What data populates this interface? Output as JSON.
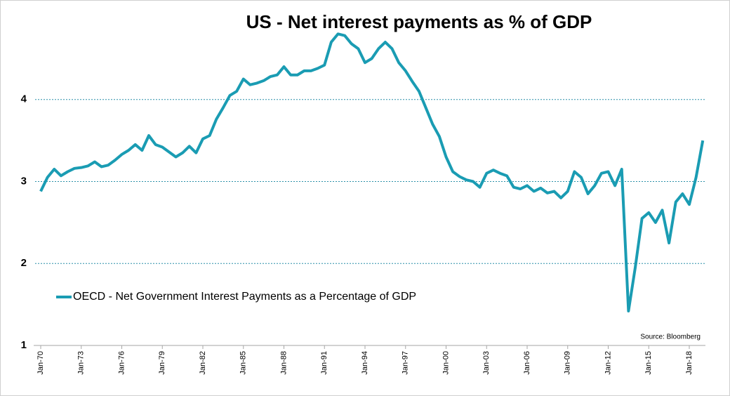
{
  "chart_data": {
    "type": "line",
    "title": "US - Net interest payments as % of GDP",
    "source": "Source: Bloomberg",
    "categories": [
      "Jan-70",
      null,
      null,
      null,
      null,
      null,
      "Jan-73",
      null,
      null,
      null,
      null,
      null,
      "Jan-76",
      null,
      null,
      null,
      null,
      null,
      "Jan-79",
      null,
      null,
      null,
      null,
      null,
      "Jan-82",
      null,
      null,
      null,
      null,
      null,
      "Jan-85",
      null,
      null,
      null,
      null,
      null,
      "Jan-88",
      null,
      null,
      null,
      null,
      null,
      "Jan-91",
      null,
      null,
      null,
      null,
      null,
      "Jan-94",
      null,
      null,
      null,
      null,
      null,
      "Jan-97",
      null,
      null,
      null,
      null,
      null,
      "Jan-00",
      null,
      null,
      null,
      null,
      null,
      "Jan-03",
      null,
      null,
      null,
      null,
      null,
      "Jan-06",
      null,
      null,
      null,
      null,
      null,
      "Jan-09",
      null,
      null,
      null,
      null,
      null,
      "Jan-12",
      null,
      null,
      null,
      null,
      null,
      "Jan-15",
      null,
      null,
      null,
      null,
      null,
      "Jan-18",
      null,
      null
    ],
    "series": [
      {
        "name": "OECD - Net Government Interest Payments as a Percentage of GDP",
        "color": "#1a9cb3",
        "values": [
          2.88,
          3.05,
          3.15,
          3.07,
          3.12,
          3.16,
          3.17,
          3.19,
          3.24,
          3.18,
          3.2,
          3.26,
          3.33,
          3.38,
          3.45,
          3.38,
          3.56,
          3.45,
          3.42,
          3.36,
          3.3,
          3.35,
          3.43,
          3.35,
          3.52,
          3.56,
          3.76,
          3.9,
          4.05,
          4.1,
          4.25,
          4.18,
          4.2,
          4.23,
          4.28,
          4.3,
          4.4,
          4.3,
          4.3,
          4.35,
          4.35,
          4.38,
          4.42,
          4.7,
          4.8,
          4.78,
          4.68,
          4.62,
          4.45,
          4.5,
          4.62,
          4.7,
          4.62,
          4.45,
          4.35,
          4.22,
          4.1,
          3.9,
          3.7,
          3.55,
          3.3,
          3.12,
          3.06,
          3.02,
          3.0,
          2.93,
          3.1,
          3.14,
          3.1,
          3.07,
          2.93,
          2.91,
          2.95,
          2.88,
          2.92,
          2.86,
          2.88,
          2.8,
          2.88,
          3.12,
          3.05,
          2.85,
          2.95,
          3.1,
          3.12,
          2.95,
          3.15,
          1.42,
          1.95,
          2.55,
          2.62,
          2.5,
          2.65,
          2.25,
          2.75,
          2.85,
          2.72,
          3.05,
          3.5
        ]
      }
    ],
    "ylim": [
      1,
      5
    ],
    "yticks": [
      1,
      2,
      3,
      4
    ],
    "grid": true,
    "legend": "lower left"
  }
}
